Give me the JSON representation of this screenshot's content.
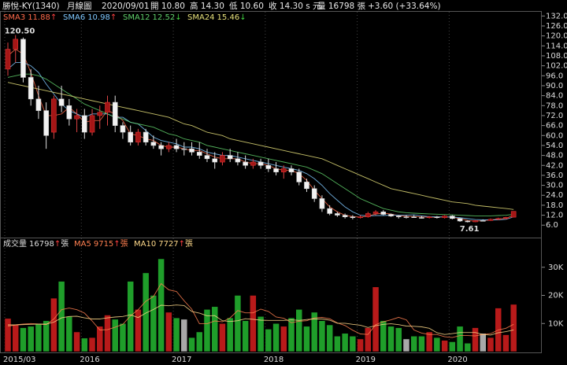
{
  "header": {
    "items": [
      "勝悅-KY(1340)",
      "月線圖",
      "2020/09/01",
      "開 10.80",
      "高 14.30",
      "低 10.60",
      "收 14.30 s 元",
      "量 16798 張",
      "+3.60 (+33.64%)"
    ]
  },
  "chart_data": [
    {
      "type": "candlestick",
      "categories": [
        "2015/03",
        null,
        null,
        null,
        null,
        null,
        null,
        null,
        null,
        null,
        "2016",
        null,
        null,
        null,
        null,
        null,
        null,
        null,
        null,
        null,
        null,
        null,
        "2017",
        null,
        null,
        null,
        null,
        null,
        null,
        null,
        null,
        null,
        null,
        null,
        "2018",
        null,
        null,
        null,
        null,
        null,
        null,
        null,
        null,
        null,
        null,
        null,
        "2019",
        null,
        null,
        null,
        null,
        null,
        null,
        null,
        null,
        null,
        null,
        null,
        "2020",
        null,
        null,
        null,
        null,
        null,
        null,
        null,
        null
      ],
      "open": [
        100,
        112,
        118,
        95,
        82,
        75,
        62,
        82,
        78,
        70,
        72,
        62,
        72,
        74,
        80,
        66,
        62,
        56,
        62,
        56,
        54,
        52,
        54,
        52,
        52,
        50,
        48,
        46,
        44,
        48,
        46,
        44,
        42,
        44,
        42,
        40,
        38,
        40,
        38,
        32,
        28,
        22,
        16,
        13,
        12,
        11,
        10.5,
        11,
        13,
        14,
        12.5,
        11.5,
        11,
        11,
        10.6,
        10.5,
        11,
        10.5,
        11.5,
        10,
        8.5,
        8,
        8.8,
        8.8,
        9.5,
        10,
        10.8
      ],
      "high": [
        116,
        120.5,
        119,
        100,
        90,
        80,
        84,
        90,
        82,
        76,
        76,
        76,
        78,
        84,
        84,
        68,
        66,
        64,
        64,
        60,
        56,
        56,
        58,
        56,
        56,
        56,
        52,
        50,
        50,
        52,
        50,
        48,
        46,
        46,
        46,
        44,
        42,
        42,
        40,
        34,
        30,
        24,
        18,
        14,
        13,
        12,
        12,
        14,
        15,
        15,
        13,
        12,
        12,
        12,
        11.5,
        11.5,
        11.5,
        12,
        12,
        10.5,
        9,
        9,
        9.5,
        10,
        10.5,
        11,
        14.3
      ],
      "low": [
        96,
        104,
        92,
        78,
        70,
        52,
        58,
        74,
        66,
        62,
        58,
        60,
        64,
        66,
        62,
        58,
        54,
        54,
        54,
        52,
        48,
        50,
        50,
        48,
        48,
        46,
        44,
        40,
        42,
        44,
        42,
        40,
        40,
        40,
        38,
        36,
        34,
        36,
        30,
        26,
        20,
        14,
        12,
        11,
        10,
        9.5,
        10,
        10.5,
        12,
        12,
        11,
        10,
        10,
        10.5,
        10,
        10,
        10,
        10,
        9.5,
        8,
        7.61,
        7.8,
        8.5,
        8.6,
        9,
        9.5,
        10.6
      ],
      "close": [
        112,
        118,
        95,
        82,
        75,
        60,
        82,
        78,
        70,
        72,
        62,
        72,
        74,
        80,
        66,
        62,
        56,
        62,
        56,
        54,
        52,
        54,
        52,
        52,
        50,
        48,
        46,
        44,
        48,
        46,
        44,
        42,
        44,
        42,
        40,
        38,
        40,
        38,
        32,
        28,
        22,
        16,
        13,
        12,
        11,
        10.5,
        11,
        13,
        14,
        12.5,
        11.5,
        11,
        11,
        10.6,
        10.5,
        11,
        10.5,
        11.5,
        10,
        8.5,
        8,
        8.8,
        8.8,
        9.5,
        10,
        10.7,
        14.3
      ],
      "up_color": "#a51616",
      "down_color": "#f2f2f2",
      "flat_color": "#9a9a9a",
      "annotations": [
        {
          "text": "120.50",
          "value": 120.5
        },
        {
          "text": "7.61",
          "value": 7.61
        }
      ],
      "series": [
        {
          "name": "SMA3",
          "last": "11.88",
          "arrow": "↑",
          "color": "#ff6a4a",
          "values": [
            108,
            112,
            109,
            98,
            84,
            72,
            72,
            73,
            77,
            73,
            68,
            69,
            69,
            75,
            73,
            69,
            61,
            60,
            58,
            57,
            54,
            53,
            53,
            52,
            51,
            51,
            49,
            47,
            46,
            46,
            46,
            44,
            43,
            43,
            42,
            40,
            39,
            39,
            37,
            33,
            27,
            22,
            17,
            14,
            12,
            11.2,
            10.8,
            11.5,
            12.7,
            13.2,
            12.7,
            11.7,
            11.3,
            11.2,
            11,
            10.8,
            10.7,
            11,
            10.7,
            10,
            8.8,
            8.4,
            8.7,
            9.2,
            9.6,
            10.1,
            11.88
          ]
        },
        {
          "name": "SMA6",
          "last": "10.98",
          "arrow": "↑",
          "color": "#7fc8ff",
          "values": [
            100,
            104,
            104,
            102,
            98,
            91,
            85,
            79,
            75,
            73,
            71,
            73,
            73,
            73,
            71,
            71,
            68,
            67,
            63,
            59,
            57,
            56,
            55,
            53,
            53,
            52,
            50,
            49,
            48,
            48,
            47,
            46,
            45,
            44,
            43,
            42,
            41,
            40,
            39,
            37,
            34,
            30,
            25,
            21,
            17,
            14,
            12,
            11.6,
            11.8,
            11.8,
            12,
            12,
            12.1,
            12.2,
            11.6,
            11.1,
            11,
            11,
            10.9,
            10.5,
            9.9,
            9.4,
            9.2,
            9.2,
            9.2,
            9.5,
            10.98
          ]
        },
        {
          "name": "SMA12",
          "last": "12.52",
          "arrow": "↓",
          "color": "#5fcf6a",
          "values": [
            95,
            96,
            97,
            97,
            96,
            94,
            91,
            88,
            85,
            82,
            79,
            77,
            75,
            73,
            71,
            70,
            68,
            67,
            66,
            65,
            63,
            61,
            60,
            58,
            57,
            56,
            54,
            53,
            52,
            51,
            50,
            49,
            48,
            47,
            46,
            45,
            44,
            43,
            42,
            41,
            39,
            37,
            34,
            31,
            28,
            25,
            22,
            20,
            18,
            16,
            15,
            14,
            13.5,
            13.2,
            13,
            12.8,
            12.6,
            12.4,
            12.2,
            12,
            11.8,
            11.6,
            11.5,
            11.6,
            11.8,
            12,
            12.52
          ]
        },
        {
          "name": "SMA24",
          "last": "15.46",
          "arrow": "↓",
          "color": "#e6e07a",
          "values": [
            92,
            91,
            90,
            89,
            88,
            87,
            86,
            85,
            84,
            83,
            82,
            81,
            80,
            79,
            78,
            77,
            76,
            75,
            74,
            73,
            72,
            71,
            69,
            67,
            66,
            64,
            62,
            61,
            60,
            58,
            57,
            56,
            55,
            54,
            53,
            52,
            51,
            50,
            49,
            48,
            47,
            46,
            44,
            42,
            40,
            38,
            36,
            34,
            32,
            30,
            28,
            27,
            26,
            25,
            24,
            23,
            22,
            21,
            20,
            19.5,
            19,
            18,
            17.5,
            17,
            16.5,
            16,
            15.46
          ]
        }
      ],
      "ylim": [
        -1,
        135
      ],
      "yticks": [
        {
          "value": 6,
          "label": "6.0"
        },
        {
          "value": 12,
          "label": "12.0"
        },
        {
          "value": 18,
          "label": "18.0"
        },
        {
          "value": 24,
          "label": "24.0"
        },
        {
          "value": 30,
          "label": "30.0"
        },
        {
          "value": 36,
          "label": "36.0"
        },
        {
          "value": 42,
          "label": "42.0"
        },
        {
          "value": 48,
          "label": "48.0"
        },
        {
          "value": 54,
          "label": "54.0"
        },
        {
          "value": 60,
          "label": "60.0"
        },
        {
          "value": 66,
          "label": "66.0"
        },
        {
          "value": 72,
          "label": "72.0"
        },
        {
          "value": 78,
          "label": "78.0"
        },
        {
          "value": 84,
          "label": "84.0"
        },
        {
          "value": 90,
          "label": "90.0"
        },
        {
          "value": 96,
          "label": "96.0"
        },
        {
          "value": 102,
          "label": "102.0"
        },
        {
          "value": 108,
          "label": "108.0"
        },
        {
          "value": 114,
          "label": "114.0"
        },
        {
          "value": 120,
          "label": "120.0"
        },
        {
          "value": 126,
          "label": "126.0"
        },
        {
          "value": 132,
          "label": "132.0"
        }
      ],
      "grid": true
    },
    {
      "type": "bar",
      "name": "成交量",
      "last": "16798",
      "arrow": "↑",
      "unit": "張",
      "values": [
        11800,
        9500,
        8500,
        9000,
        10000,
        11000,
        19000,
        25000,
        12500,
        7000,
        4800,
        5000,
        9000,
        13000,
        11500,
        10000,
        25000,
        15000,
        28000,
        20000,
        33000,
        14000,
        12000,
        11500,
        5000,
        7000,
        15000,
        16000,
        10000,
        12000,
        20000,
        11000,
        20000,
        12500,
        8000,
        10000,
        9000,
        12000,
        15000,
        9000,
        14000,
        11000,
        9500,
        5500,
        6500,
        5500,
        4500,
        8500,
        23000,
        11000,
        9000,
        8500,
        4500,
        5500,
        5500,
        7000,
        5000,
        4000,
        3500,
        9000,
        3000,
        8500,
        6500,
        5000,
        15500,
        6000,
        16798
      ],
      "up_color": "#b81a1a",
      "down_color": "#1f9e2a",
      "flat_color": "#a8a8a8",
      "series": [
        {
          "name": "MA5",
          "last": "9715",
          "arrow": "↑",
          "unit": "張",
          "color": "#ff7f50",
          "values": [
            9000,
            9500,
            9800,
            10000,
            9800,
            9600,
            11600,
            14900,
            15500,
            14900,
            13700,
            10900,
            7700,
            7800,
            8700,
            9700,
            12700,
            14900,
            17900,
            19600,
            24200,
            22000,
            21400,
            18100,
            15100,
            9900,
            9900,
            10900,
            10600,
            12000,
            14600,
            13800,
            13800,
            15100,
            14300,
            12300,
            11900,
            10300,
            10800,
            11000,
            12000,
            12200,
            11700,
            10200,
            9300,
            7600,
            6300,
            6100,
            9600,
            10600,
            11300,
            12200,
            11300,
            7700,
            6600,
            6100,
            6100,
            5300,
            5000,
            5700,
            5700,
            5600,
            6100,
            6400,
            7700,
            8300,
            9715
          ]
        },
        {
          "name": "MA10",
          "last": "7727",
          "arrow": "↑",
          "unit": "張",
          "color": "#ffd98a",
          "values": [
            9500,
            9500,
            9600,
            9700,
            9800,
            9800,
            10500,
            12000,
            12500,
            12600,
            12000,
            11600,
            11600,
            12000,
            12300,
            12500,
            13100,
            12100,
            13700,
            15000,
            16500,
            16300,
            16600,
            16400,
            14300,
            13700,
            12700,
            12800,
            11000,
            10700,
            11000,
            11700,
            11500,
            11200,
            11100,
            11100,
            11100,
            11300,
            11100,
            11400,
            11600,
            11600,
            11200,
            10100,
            10100,
            9700,
            9400,
            8600,
            9200,
            9700,
            9900,
            9600,
            9100,
            9000,
            8800,
            8300,
            6700,
            6100,
            6400,
            6800,
            6800,
            6800,
            6100,
            5900,
            6700,
            7100,
            7727
          ]
        }
      ],
      "ylim": [
        0,
        40000
      ],
      "yticks": [
        {
          "value": 10000,
          "label": "10K"
        },
        {
          "value": 20000,
          "label": "20K"
        },
        {
          "value": 30000,
          "label": "30K"
        }
      ]
    }
  ]
}
